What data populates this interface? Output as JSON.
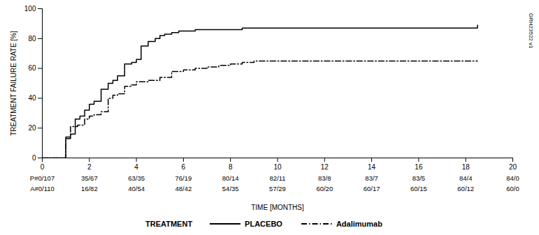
{
  "chart_data": {
    "type": "line",
    "xlabel": "TIME [MONTHS]",
    "ylabel": "TREATMENT FAILURE RATE [%]",
    "xlim": [
      0,
      20
    ],
    "ylim": [
      0,
      100
    ],
    "xticks": [
      0,
      2,
      4,
      6,
      8,
      10,
      12,
      14,
      16,
      18,
      20
    ],
    "yticks": [
      0,
      20,
      40,
      60,
      80,
      100
    ],
    "grid": false,
    "legend": "bottom",
    "legend_title": "TREATMENT",
    "series": [
      {
        "name": "PLACEBO",
        "type": "step",
        "color": "black",
        "line_style": "solid",
        "x": [
          0,
          0.9,
          1.0,
          1.2,
          1.4,
          1.6,
          1.8,
          2.0,
          2.2,
          2.5,
          2.8,
          3.0,
          3.2,
          3.5,
          3.8,
          4.0,
          4.2,
          4.5,
          4.8,
          5.0,
          5.2,
          5.5,
          5.8,
          6.0,
          6.5,
          7.0,
          7.5,
          8.0,
          8.5,
          9.0,
          10.0,
          11.0,
          12.0,
          13.0,
          14.0,
          16.0,
          18.0,
          18.5
        ],
        "values": [
          0,
          0,
          13,
          16,
          26,
          28,
          32,
          36,
          38,
          46,
          50,
          52,
          55,
          63,
          64,
          66,
          75,
          78,
          80,
          82,
          83,
          84,
          85,
          85,
          86,
          86,
          86,
          86,
          87,
          87,
          87,
          87,
          87,
          87,
          87,
          87,
          87,
          89
        ]
      },
      {
        "name": "Adalimumab",
        "type": "step",
        "color": "black",
        "line_style": "dashdot",
        "x": [
          0,
          0.9,
          1.0,
          1.2,
          1.5,
          1.8,
          2.0,
          2.2,
          2.5,
          2.8,
          3.0,
          3.2,
          3.5,
          3.8,
          4.0,
          4.5,
          5.0,
          5.5,
          6.0,
          6.5,
          7.0,
          7.5,
          8.0,
          8.5,
          9.0,
          10.0,
          11.0,
          12.0,
          13.0,
          14.0,
          16.0,
          18.5
        ],
        "values": [
          0,
          0,
          14,
          21,
          22,
          26,
          28,
          29,
          31,
          40,
          42,
          43,
          48,
          49,
          51,
          52,
          54,
          58,
          59,
          60,
          61,
          62,
          63,
          64,
          65,
          65,
          65,
          65,
          65,
          65,
          65,
          65
        ]
      }
    ],
    "table": {
      "x": [
        0,
        2,
        4,
        6,
        8,
        10,
        12,
        14,
        16,
        18,
        20
      ],
      "rows": [
        [
          "P#0/107",
          "35/67",
          "63/35",
          "76/19",
          "80/14",
          "82/11",
          "83/8",
          "83/7",
          "83/5",
          "84/4",
          "84/0"
        ],
        [
          "A#0/110",
          "16/82",
          "40/54",
          "48/42",
          "54/35",
          "57/29",
          "60/20",
          "60/17",
          "60/15",
          "60/12",
          "60/0"
        ]
      ]
    },
    "annotations": [
      "GRH23522 v1"
    ]
  }
}
